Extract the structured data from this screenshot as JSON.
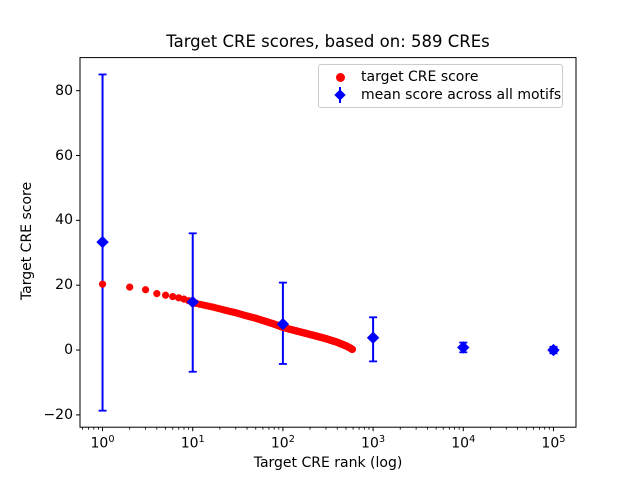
{
  "title": "Target CRE scores, based on: 589 CREs",
  "axes": {
    "xlabel": "Target CRE rank (log)",
    "ylabel": "Target CRE score",
    "x_scale": "log",
    "x_ticks": [
      {
        "base": "10",
        "exp": "0",
        "value": 1
      },
      {
        "base": "10",
        "exp": "1",
        "value": 10
      },
      {
        "base": "10",
        "exp": "2",
        "value": 100
      },
      {
        "base": "10",
        "exp": "3",
        "value": 1000
      },
      {
        "base": "10",
        "exp": "4",
        "value": 10000
      },
      {
        "base": "10",
        "exp": "5",
        "value": 100000
      }
    ],
    "y_ticks": [
      -20,
      0,
      20,
      40,
      60,
      80
    ],
    "x_minor_ticks": true
  },
  "legend": {
    "items": [
      {
        "label": "target CRE score",
        "marker": "circle",
        "color": "#ff0000"
      },
      {
        "label": "mean score across all motifs",
        "marker": "diamond-errorbar",
        "color": "#0000ff"
      }
    ],
    "position": "upper right"
  },
  "colors": {
    "red_series": "#ff0000",
    "blue_series": "#0000ff",
    "frame": "#000000",
    "legend_border": "#cccccc",
    "background": "#ffffff"
  },
  "chart_data": {
    "type": "scatter",
    "title": "Target CRE scores, based on: 589 CREs",
    "xlabel": "Target CRE rank (log)",
    "ylabel": "Target CRE score",
    "x_scale": "log",
    "xlim_log10": [
      -0.25,
      5.25
    ],
    "ylim": [
      -23.8,
      90.2
    ],
    "grid": false,
    "legend_position": "upper right",
    "series": [
      {
        "name": "target CRE score",
        "marker": "circle",
        "color": "#ff0000",
        "n_points": 589,
        "note": "one dot per rank 1..589, score decreases with log rank",
        "points_sampled": [
          [
            1,
            20.3
          ],
          [
            2,
            19.4
          ],
          [
            3,
            18.6
          ],
          [
            4,
            17.4
          ],
          [
            5,
            16.9
          ],
          [
            6,
            16.5
          ],
          [
            7,
            16.1
          ],
          [
            8,
            15.7
          ],
          [
            9,
            15.2
          ],
          [
            10,
            14.7
          ],
          [
            12,
            14.1
          ],
          [
            14,
            13.7
          ],
          [
            17,
            13.2
          ],
          [
            20,
            12.7
          ],
          [
            25,
            12.0
          ],
          [
            30,
            11.5
          ],
          [
            40,
            10.5
          ],
          [
            50,
            9.8
          ],
          [
            60,
            9.1
          ],
          [
            80,
            8.0
          ],
          [
            100,
            7.0
          ],
          [
            120,
            6.4
          ],
          [
            150,
            5.7
          ],
          [
            200,
            4.8
          ],
          [
            250,
            4.1
          ],
          [
            300,
            3.5
          ],
          [
            350,
            2.9
          ],
          [
            400,
            2.4
          ],
          [
            450,
            1.8
          ],
          [
            500,
            1.3
          ],
          [
            550,
            0.7
          ],
          [
            589,
            0.2
          ]
        ]
      },
      {
        "name": "mean score across all motifs",
        "marker": "diamond",
        "color": "#0000ff",
        "points": [
          {
            "x": 1,
            "y": 33.3,
            "bar_lo": -18.7,
            "bar_hi": 85.0
          },
          {
            "x": 10,
            "y": 14.8,
            "bar_lo": -6.7,
            "bar_hi": 36.0
          },
          {
            "x": 100,
            "y": 8.0,
            "bar_lo": -4.3,
            "bar_hi": 20.8
          },
          {
            "x": 1000,
            "y": 3.8,
            "bar_lo": -3.5,
            "bar_hi": 10.1
          },
          {
            "x": 10000,
            "y": 0.8,
            "bar_lo": -0.7,
            "bar_hi": 2.3
          },
          {
            "x": 100000,
            "y": 0.0,
            "bar_lo": -1.0,
            "bar_hi": 1.0
          }
        ]
      }
    ]
  }
}
